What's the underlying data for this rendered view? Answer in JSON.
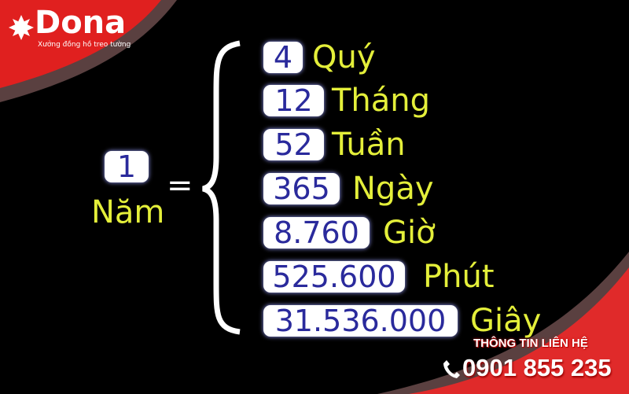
{
  "brand": {
    "name": "Dona",
    "tagline": "Xưởng đồng hồ treo tường",
    "color": "#e0201f"
  },
  "left": {
    "number": "1",
    "unit": "Năm",
    "equals": "="
  },
  "rows": [
    {
      "value": "4",
      "unit": "Quý"
    },
    {
      "value": "12",
      "unit": "Tháng"
    },
    {
      "value": "52",
      "unit": "Tuần"
    },
    {
      "value": "365",
      "unit": "Ngày"
    },
    {
      "value": "8.760",
      "unit": "Giờ"
    },
    {
      "value": "525.600",
      "unit": "Phút"
    },
    {
      "value": "31.536.000",
      "unit": "Giây"
    }
  ],
  "contact": {
    "title": "THÔNG TIN LIÊN HỆ",
    "phone": "0901 855 235",
    "icon": "phone-icon"
  },
  "colors": {
    "number_text": "#2a2a9c",
    "label_text": "#e4ef3a"
  }
}
